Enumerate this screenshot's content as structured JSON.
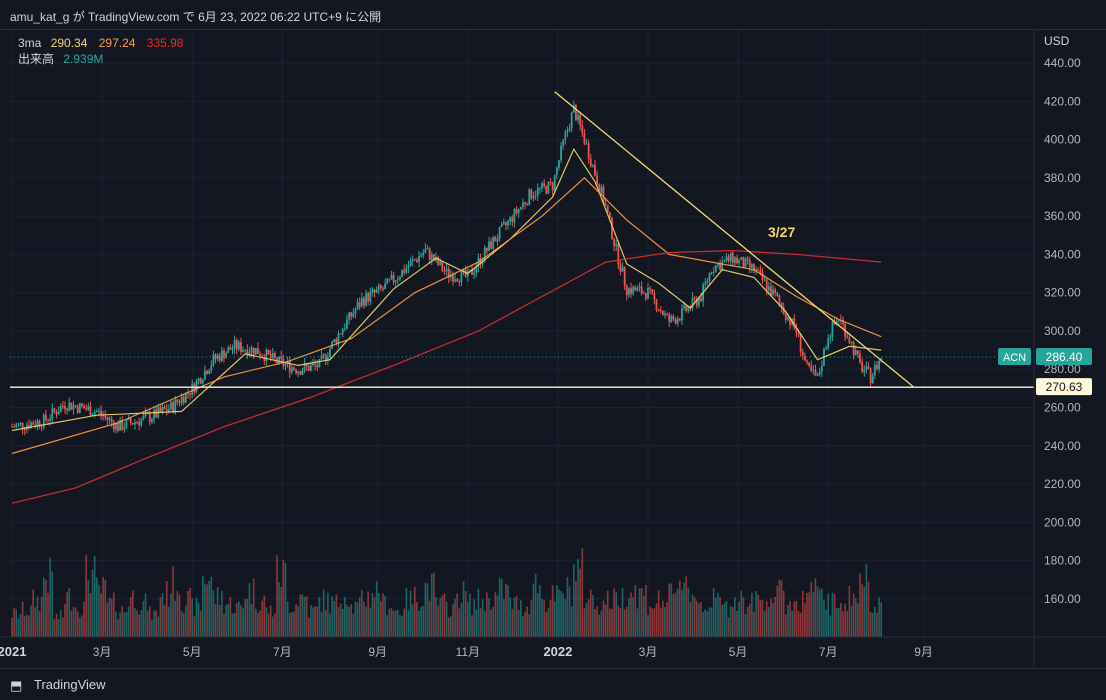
{
  "header": {
    "attribution": "amu_kat_g が TradingView.com で 6月 23, 2022 06:22 UTC+9 に公開"
  },
  "legend": {
    "ma_label": "3ma",
    "ma_values": [
      {
        "value": "290.34",
        "color": "#f5d76e"
      },
      {
        "value": "297.24",
        "color": "#ff9f40"
      },
      {
        "value": "335.98",
        "color": "#e0302f"
      }
    ],
    "volume_label": "出来高",
    "volume_value": "2.939M",
    "volume_color": "#26a69a"
  },
  "axis": {
    "currency": "USD"
  },
  "price_tags": {
    "symbol": "ACN",
    "last_price": "286.40",
    "last_price_value": 286.4,
    "support_price": "270.63",
    "support_value": 270.63
  },
  "annotation": {
    "text": "3/27",
    "color": "#f5d76e"
  },
  "footer": {
    "brand": "TradingView"
  },
  "chart_data": {
    "type": "candlestick",
    "symbol": "ACN",
    "y_unit": "USD",
    "ylim": [
      140,
      450
    ],
    "y_ticks": [
      160,
      180,
      200,
      220,
      240,
      260,
      280,
      300,
      320,
      340,
      360,
      380,
      400,
      420,
      440
    ],
    "x_tick_labels": [
      "2021",
      "3月",
      "5月",
      "7月",
      "9月",
      "11月",
      "2022",
      "3月",
      "5月",
      "7月",
      "9月"
    ],
    "x_tick_weeks": [
      0,
      8.5,
      17,
      25.5,
      34.5,
      43,
      51.5,
      60,
      68.5,
      77,
      86
    ],
    "grid": true,
    "price_path": [
      [
        0,
        250
      ],
      [
        3,
        253
      ],
      [
        5,
        262
      ],
      [
        8,
        258
      ],
      [
        10,
        250
      ],
      [
        13,
        255
      ],
      [
        15,
        260
      ],
      [
        17,
        270
      ],
      [
        19,
        285
      ],
      [
        21,
        292
      ],
      [
        23,
        290
      ],
      [
        25,
        284
      ],
      [
        27,
        280
      ],
      [
        29,
        282
      ],
      [
        31,
        300
      ],
      [
        33,
        316
      ],
      [
        35,
        322
      ],
      [
        37,
        332
      ],
      [
        39,
        342
      ],
      [
        41,
        330
      ],
      [
        43,
        328
      ],
      [
        45,
        344
      ],
      [
        47,
        358
      ],
      [
        49,
        372
      ],
      [
        51,
        376
      ],
      [
        52,
        398
      ],
      [
        53,
        416
      ],
      [
        54,
        400
      ],
      [
        56,
        365
      ],
      [
        57,
        342
      ],
      [
        58,
        322
      ],
      [
        60,
        320
      ],
      [
        62,
        305
      ],
      [
        63,
        308
      ],
      [
        65,
        318
      ],
      [
        66,
        333
      ],
      [
        68,
        338
      ],
      [
        70,
        332
      ],
      [
        72,
        318
      ],
      [
        74,
        300
      ],
      [
        75,
        280
      ],
      [
        76,
        275
      ],
      [
        77,
        298
      ],
      [
        78,
        307
      ],
      [
        79,
        296
      ],
      [
        80,
        282
      ],
      [
        81,
        276
      ],
      [
        82,
        286
      ]
    ],
    "moving_averages": [
      {
        "period_label": "short",
        "color": "#f5d76e",
        "points": [
          [
            0,
            248
          ],
          [
            8,
            256
          ],
          [
            16,
            258
          ],
          [
            22,
            288
          ],
          [
            27,
            282
          ],
          [
            30,
            285
          ],
          [
            36,
            322
          ],
          [
            40,
            338
          ],
          [
            43,
            330
          ],
          [
            47,
            348
          ],
          [
            51,
            370
          ],
          [
            53,
            395
          ],
          [
            55,
            378
          ],
          [
            58,
            335
          ],
          [
            61,
            325
          ],
          [
            64,
            312
          ],
          [
            67,
            332
          ],
          [
            70,
            328
          ],
          [
            73,
            310
          ],
          [
            76,
            285
          ],
          [
            79,
            292
          ],
          [
            82,
            290
          ]
        ]
      },
      {
        "period_label": "medium",
        "color": "#ff9f40",
        "points": [
          [
            0,
            236
          ],
          [
            10,
            252
          ],
          [
            20,
            276
          ],
          [
            26,
            284
          ],
          [
            32,
            296
          ],
          [
            38,
            320
          ],
          [
            44,
            336
          ],
          [
            50,
            360
          ],
          [
            54,
            380
          ],
          [
            58,
            358
          ],
          [
            62,
            340
          ],
          [
            66,
            336
          ],
          [
            70,
            332
          ],
          [
            74,
            318
          ],
          [
            78,
            306
          ],
          [
            82,
            297
          ]
        ]
      },
      {
        "period_label": "long",
        "color": "#e0302f",
        "points": [
          [
            0,
            210
          ],
          [
            6,
            218
          ],
          [
            12,
            232
          ],
          [
            20,
            250
          ],
          [
            28,
            265
          ],
          [
            36,
            282
          ],
          [
            44,
            300
          ],
          [
            50,
            318
          ],
          [
            56,
            336
          ],
          [
            62,
            341
          ],
          [
            68,
            342
          ],
          [
            74,
            340
          ],
          [
            78,
            338
          ],
          [
            82,
            336
          ]
        ]
      }
    ],
    "volume": {
      "last": "2.939M",
      "relative_levels": [
        0.35,
        0.4,
        0.55,
        0.9,
        0.3,
        0.6,
        0.45,
        0.95,
        0.7,
        0.5,
        0.4,
        0.6,
        0.5,
        0.35,
        0.65,
        0.8,
        0.55,
        0.45,
        0.9,
        0.6,
        0.5,
        0.45,
        0.7,
        0.55,
        0.4,
        0.95,
        0.5,
        0.6,
        0.4,
        0.55,
        0.5,
        0.65,
        0.45,
        0.6,
        0.7,
        0.5,
        0.4,
        0.55,
        0.6,
        0.75,
        0.5,
        0.45,
        0.65,
        0.5,
        0.55,
        0.6,
        0.7,
        0.5,
        0.45,
        0.8,
        0.55,
        0.6,
        0.7,
        1.0,
        0.6,
        0.5,
        0.55,
        0.6,
        0.7,
        0.65,
        0.5,
        0.55,
        0.6,
        0.9,
        0.6,
        0.5,
        0.55,
        0.45,
        0.6,
        0.5,
        0.55,
        0.6,
        0.65,
        0.5,
        0.55,
        0.7,
        0.6,
        0.5,
        0.55,
        0.6,
        0.85,
        0.55
      ]
    },
    "trendline": {
      "from": [
        51.2,
        425
      ],
      "to": [
        85,
        271
      ],
      "color": "#f5d76e"
    },
    "horizontal_line": {
      "value": 270.63,
      "color": "#f5f5dc"
    },
    "last_price_line": {
      "value": 286.4,
      "color": "#26a69a"
    }
  }
}
